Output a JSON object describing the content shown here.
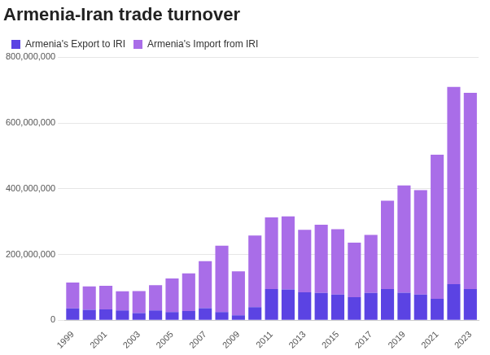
{
  "chart_data": {
    "type": "bar",
    "title": "Armenia-Iran trade turnover",
    "categories": [
      "1999",
      null,
      "2001",
      null,
      "2003",
      null,
      "2005",
      null,
      "2007",
      null,
      "2009",
      null,
      "2011",
      null,
      "2013",
      null,
      "2015",
      null,
      "2017",
      null,
      "2019",
      null,
      "2021",
      null,
      "2023"
    ],
    "series": [
      {
        "name": "Armenia's Export to IRI",
        "color": "#5b43e3",
        "values": [
          36000000,
          32000000,
          33000000,
          30000000,
          22000000,
          30000000,
          25000000,
          28000000,
          37000000,
          25000000,
          15000000,
          40000000,
          95000000,
          94000000,
          85000000,
          83000000,
          78000000,
          70000000,
          83000000,
          95000000,
          84000000,
          78000000,
          65000000,
          110000000,
          95000000
        ]
      },
      {
        "name": "Armenia's Import from IRI",
        "color": "#a96de8",
        "values": [
          79000000,
          71000000,
          72000000,
          58000000,
          67000000,
          77000000,
          102000000,
          115000000,
          143000000,
          202000000,
          134000000,
          218000000,
          218000000,
          222000000,
          190000000,
          208000000,
          199000000,
          166000000,
          177000000,
          269000000,
          326000000,
          318000000,
          439000000,
          600000000,
          597000000
        ]
      }
    ],
    "ylim": [
      0,
      800000000
    ],
    "yticks": [
      0,
      {
        "value": 200000000,
        "label": "200,000,000"
      },
      {
        "value": 400000000,
        "label": "400,000,000"
      },
      {
        "value": 600000000,
        "label": "600,000,000"
      },
      {
        "value": 800000000,
        "label": "800,000,000"
      }
    ],
    "stacked": true,
    "grid": true,
    "legend": "top-left"
  }
}
